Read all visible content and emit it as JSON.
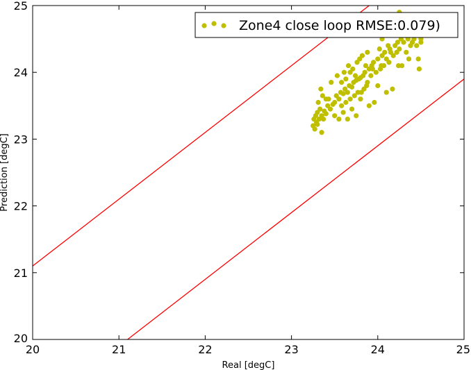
{
  "chart_data": {
    "type": "scatter",
    "title": "",
    "xlabel": "Real [degC]",
    "ylabel": "Prediction [degC]",
    "xlim": [
      20,
      25
    ],
    "ylim": [
      20,
      25
    ],
    "xticks": [
      "20",
      "21",
      "22",
      "23",
      "24",
      "25"
    ],
    "yticks": [
      "20",
      "21",
      "22",
      "23",
      "24",
      "25"
    ],
    "grid": false,
    "legend_position": "top-right",
    "point_color": "#bfbf00",
    "line_color": "#ff0000",
    "series": [
      {
        "name": "Zone4 close loop RMSE:0.079)",
        "points": [
          [
            23.25,
            23.2
          ],
          [
            23.26,
            23.3
          ],
          [
            23.27,
            23.15
          ],
          [
            23.28,
            23.35
          ],
          [
            23.29,
            23.25
          ],
          [
            23.3,
            23.4
          ],
          [
            23.3,
            23.22
          ],
          [
            23.31,
            23.55
          ],
          [
            23.32,
            23.3
          ],
          [
            23.33,
            23.45
          ],
          [
            23.34,
            23.75
          ],
          [
            23.35,
            23.35
          ],
          [
            23.36,
            23.65
          ],
          [
            23.37,
            23.3
          ],
          [
            23.38,
            23.42
          ],
          [
            23.4,
            23.38
          ],
          [
            23.42,
            23.5
          ],
          [
            23.43,
            23.6
          ],
          [
            23.45,
            23.45
          ],
          [
            23.46,
            23.85
          ],
          [
            23.48,
            23.52
          ],
          [
            23.5,
            23.55
          ],
          [
            23.5,
            23.35
          ],
          [
            23.52,
            23.65
          ],
          [
            23.53,
            23.95
          ],
          [
            23.55,
            23.6
          ],
          [
            23.55,
            23.3
          ],
          [
            23.57,
            23.7
          ],
          [
            23.58,
            23.5
          ],
          [
            23.6,
            23.68
          ],
          [
            23.6,
            23.4
          ],
          [
            23.61,
            24.0
          ],
          [
            23.62,
            23.75
          ],
          [
            23.63,
            23.55
          ],
          [
            23.65,
            23.7
          ],
          [
            23.65,
            23.3
          ],
          [
            23.66,
            24.1
          ],
          [
            23.67,
            23.8
          ],
          [
            23.68,
            23.6
          ],
          [
            23.7,
            23.78
          ],
          [
            23.7,
            23.45
          ],
          [
            23.71,
            24.05
          ],
          [
            23.72,
            23.85
          ],
          [
            23.73,
            23.65
          ],
          [
            23.75,
            23.88
          ],
          [
            23.75,
            23.35
          ],
          [
            23.76,
            24.15
          ],
          [
            23.77,
            23.7
          ],
          [
            23.78,
            23.9
          ],
          [
            23.79,
            24.2
          ],
          [
            23.8,
            23.92
          ],
          [
            23.8,
            23.6
          ],
          [
            23.82,
            24.25
          ],
          [
            23.83,
            23.95
          ],
          [
            23.84,
            23.75
          ],
          [
            23.85,
            24.0
          ],
          [
            23.86,
            24.1
          ],
          [
            23.87,
            23.8
          ],
          [
            23.88,
            24.3
          ],
          [
            23.9,
            24.05
          ],
          [
            23.9,
            23.5
          ],
          [
            23.92,
            23.95
          ],
          [
            23.93,
            24.1
          ],
          [
            23.95,
            24.15
          ],
          [
            23.96,
            23.55
          ],
          [
            23.98,
            24.0
          ],
          [
            24.0,
            24.2
          ],
          [
            24.0,
            23.8
          ],
          [
            24.02,
            24.35
          ],
          [
            24.03,
            24.05
          ],
          [
            24.05,
            24.25
          ],
          [
            24.05,
            24.5
          ],
          [
            24.07,
            24.1
          ],
          [
            24.08,
            24.3
          ],
          [
            24.1,
            24.2
          ],
          [
            24.1,
            23.7
          ],
          [
            24.12,
            24.4
          ],
          [
            24.13,
            24.15
          ],
          [
            24.15,
            24.3
          ],
          [
            24.16,
            24.65
          ],
          [
            24.17,
            23.75
          ],
          [
            24.18,
            24.25
          ],
          [
            24.2,
            24.4
          ],
          [
            24.22,
            24.3
          ],
          [
            24.23,
            24.45
          ],
          [
            24.25,
            24.35
          ],
          [
            24.25,
            24.9
          ],
          [
            24.27,
            24.5
          ],
          [
            24.28,
            24.1
          ],
          [
            24.3,
            24.45
          ],
          [
            24.32,
            24.55
          ],
          [
            24.33,
            24.3
          ],
          [
            24.35,
            24.5
          ],
          [
            24.36,
            24.2
          ],
          [
            24.38,
            24.4
          ],
          [
            24.4,
            24.45
          ],
          [
            24.42,
            24.5
          ],
          [
            24.45,
            24.4
          ],
          [
            24.47,
            24.55
          ],
          [
            24.48,
            24.05
          ],
          [
            24.5,
            24.5
          ],
          [
            24.5,
            24.45
          ],
          [
            24.47,
            24.2
          ],
          [
            23.35,
            23.1
          ],
          [
            23.4,
            23.6
          ],
          [
            23.58,
            23.85
          ],
          [
            23.63,
            23.9
          ],
          [
            23.68,
            24.0
          ],
          [
            23.74,
            23.95
          ],
          [
            23.81,
            23.7
          ],
          [
            23.88,
            23.85
          ],
          [
            23.94,
            24.05
          ],
          [
            24.04,
            24.1
          ],
          [
            24.14,
            24.35
          ],
          [
            24.24,
            24.1
          ]
        ]
      }
    ],
    "reference_lines": [
      {
        "slope": 1,
        "intercept": 1.1
      },
      {
        "slope": 1,
        "intercept": -1.1
      }
    ]
  }
}
